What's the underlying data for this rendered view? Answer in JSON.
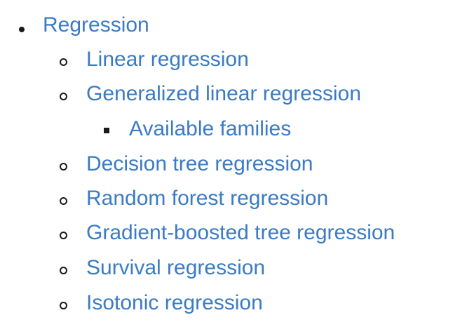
{
  "nav": {
    "regression": "Regression",
    "children": [
      "Linear regression",
      "Generalized linear regression",
      "Decision tree regression",
      "Random forest regression",
      "Gradient-boosted tree regression",
      "Survival regression",
      "Isotonic regression"
    ],
    "glm_children": [
      "Available families"
    ]
  },
  "colors": {
    "link": "#3b7bc4",
    "bullet": "#1a1a1a"
  }
}
